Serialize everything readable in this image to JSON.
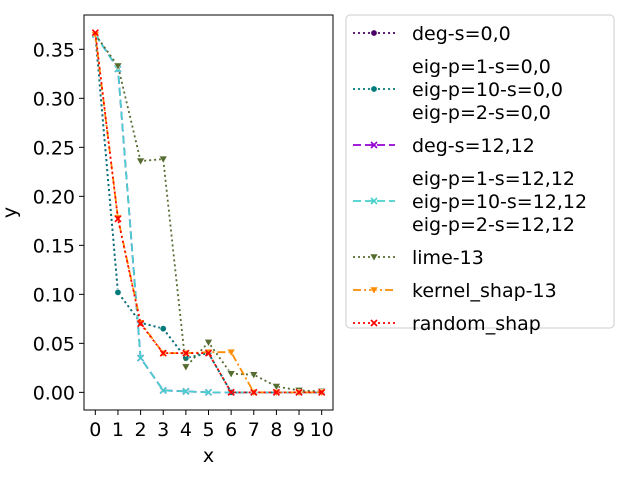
{
  "chart_data": {
    "type": "line",
    "xlabel": "x",
    "ylabel": "y",
    "xlim": [
      -0.5,
      10.5
    ],
    "ylim": [
      -0.018,
      0.385
    ],
    "x_ticks": [
      "0",
      "1",
      "2",
      "3",
      "4",
      "5",
      "6",
      "7",
      "8",
      "9",
      "10"
    ],
    "y_ticks": [
      "0.00",
      "0.05",
      "0.10",
      "0.15",
      "0.20",
      "0.25",
      "0.30",
      "0.35"
    ],
    "x": [
      0,
      1,
      2,
      3,
      4,
      5,
      6,
      7,
      8,
      9,
      10
    ],
    "grid": false,
    "legend_placement": "outside right",
    "series": [
      {
        "id": "s1",
        "color": "#4b0068",
        "dash": "2,3",
        "marker": "circle",
        "values": [
          0.365,
          0.102,
          0.071,
          0.065,
          0.035,
          0.04,
          0.0,
          0.0,
          0.0,
          0.0,
          0.0
        ]
      },
      {
        "id": "s2",
        "color": "#007b7b",
        "dash": "2,3",
        "marker": "circle",
        "values": [
          0.365,
          0.102,
          0.071,
          0.065,
          0.035,
          0.04,
          0.0,
          0.0,
          0.0,
          0.0,
          0.0
        ]
      },
      {
        "id": "s3",
        "color": "#9400d3",
        "dash": "8,4",
        "marker": "x",
        "values": [
          0.365,
          0.33,
          0.035,
          0.002,
          0.001,
          0.0,
          0.0,
          0.0,
          0.0,
          0.0,
          0.0
        ]
      },
      {
        "id": "s4",
        "color": "#48d1cc",
        "dash": "8,4",
        "marker": "x",
        "values": [
          0.365,
          0.33,
          0.035,
          0.002,
          0.001,
          0.0,
          0.0,
          0.0,
          0.0,
          0.0,
          0.0
        ]
      },
      {
        "id": "s5",
        "color": "#556b2f",
        "dash": "2,3",
        "marker": "triangle",
        "values": [
          0.365,
          0.333,
          0.236,
          0.238,
          0.026,
          0.051,
          0.019,
          0.018,
          0.006,
          0.002,
          0.001
        ]
      },
      {
        "id": "s6",
        "color": "#ff8c00",
        "dash": "8,3,2,3",
        "marker": "triangle",
        "values": [
          0.365,
          0.178,
          0.071,
          0.04,
          0.04,
          0.041,
          0.041,
          0.0,
          0.0,
          0.0,
          0.0
        ]
      },
      {
        "id": "s7",
        "color": "#ff0000",
        "dash": "2,3",
        "marker": "x",
        "values": [
          0.367,
          0.177,
          0.07,
          0.04,
          0.04,
          0.04,
          0.0,
          0.0,
          0.0,
          0.0,
          0.0
        ]
      }
    ],
    "legend": {
      "entries": [
        {
          "series_id": "s1",
          "lines": [
            "deg-s=0,0"
          ]
        },
        {
          "series_id": "s2",
          "lines": [
            "eig-p=1-s=0,0",
            "eig-p=10-s=0,0",
            "eig-p=2-s=0,0"
          ]
        },
        {
          "series_id": "s3",
          "lines": [
            "deg-s=12,12"
          ]
        },
        {
          "series_id": "s4",
          "lines": [
            "eig-p=1-s=12,12",
            "eig-p=10-s=12,12",
            "eig-p=2-s=12,12"
          ]
        },
        {
          "series_id": "s5",
          "lines": [
            "lime-13"
          ]
        },
        {
          "series_id": "s6",
          "lines": [
            "kernel_shap-13"
          ]
        },
        {
          "series_id": "s7",
          "lines": [
            "random_shap"
          ]
        }
      ]
    }
  }
}
